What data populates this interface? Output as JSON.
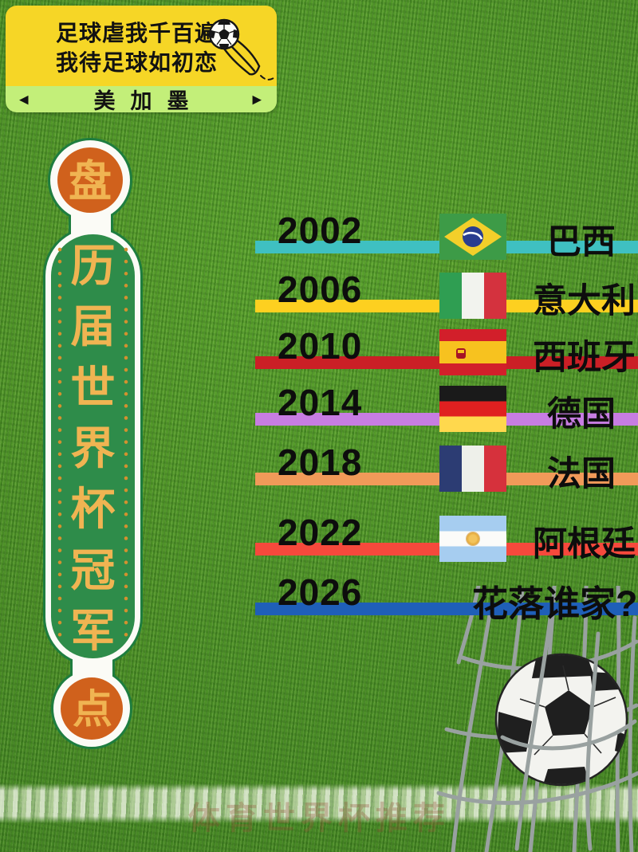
{
  "header": {
    "slogan_line1": "足球虐我千百遍",
    "slogan_line2": "我待足球如初恋",
    "banner_label": "美加墨",
    "left_arrow": "◀",
    "right_arrow": "▶",
    "colors": {
      "panel_yellow": "#f6d626",
      "banner_green": "#c3ef79"
    }
  },
  "badge": {
    "top_char": "盘",
    "vertical_title": "历届世界杯冠军",
    "bottom_char": "点",
    "colors": {
      "capsule_green": "#2e8c4a",
      "circle_orange": "#d0611c",
      "gold_text": "#f0b452",
      "outline_green": "#1e7d3f"
    }
  },
  "timeline": {
    "rows": [
      {
        "year": "2002",
        "country": "巴西",
        "flag": "brazil-flag",
        "bar_color": "#3fc0c1"
      },
      {
        "year": "2006",
        "country": "意大利",
        "flag": "italy-flag",
        "bar_color": "#fdd020"
      },
      {
        "year": "2010",
        "country": "西班牙",
        "flag": "spain-flag",
        "bar_color": "#cb1f26"
      },
      {
        "year": "2014",
        "country": "德国",
        "flag": "germany-flag",
        "bar_color": "#c77de2"
      },
      {
        "year": "2018",
        "country": "法国",
        "flag": "france-flag",
        "bar_color": "#f19a59"
      },
      {
        "year": "2022",
        "country": "阿根廷",
        "flag": "argentina-flag",
        "bar_color": "#f6493c"
      },
      {
        "year": "2026",
        "country": "花落谁家?",
        "flag": null,
        "bar_color": "#1f5fb8"
      }
    ]
  },
  "footer": {
    "watermark": "体育世界杯推荐"
  },
  "icons": {
    "header_ball": "flying-soccer-ball-icon",
    "goal": "soccer-ball-in-goal-net-icon"
  }
}
